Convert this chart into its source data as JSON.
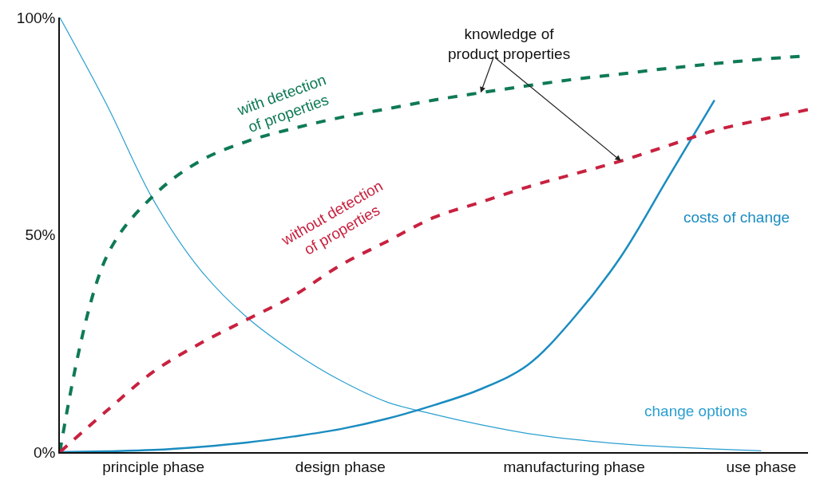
{
  "chart_data": {
    "type": "line",
    "ylim": [
      0,
      100
    ],
    "categories": [
      null,
      null,
      "principle phase",
      null,
      null,
      null,
      "design phase",
      null,
      null,
      null,
      null,
      "manufacturing phase",
      null,
      null,
      null,
      "use phase",
      null
    ],
    "yticks": [
      {
        "value": 0,
        "label": "0%"
      },
      {
        "value": 50,
        "label": "50%"
      },
      {
        "value": 100,
        "label": "100%"
      }
    ],
    "grid": false,
    "legend": false,
    "marker": "none",
    "series": [
      {
        "name": "change options",
        "color": "#2a9fd0",
        "line_style": "solid",
        "values": [
          100,
          80,
          58,
          42,
          31,
          23,
          16.5,
          11.5,
          8.7,
          6.3,
          4.3,
          2.9,
          1.9,
          1.2,
          0.7,
          0.3,
          null
        ]
      },
      {
        "name": "costs of change",
        "color": "#1a8cc0",
        "line_style": "solid",
        "values": [
          0,
          0.2,
          0.5,
          1.2,
          2.2,
          3.6,
          5.3,
          7.7,
          10.8,
          14.5,
          20,
          31,
          45,
          63,
          81,
          null,
          null
        ]
      },
      {
        "name": "with detection\nof properties",
        "color": "#0e7a55",
        "line_style": "dashed",
        "values": [
          0,
          45,
          59,
          67,
          71.5,
          74.5,
          77,
          79,
          81,
          82.7,
          84.3,
          85.8,
          87,
          88.3,
          89.4,
          90.4,
          91.2
        ]
      },
      {
        "name": "without detection\nof properties",
        "color": "#c8213f",
        "line_style": "dashed",
        "values": [
          0,
          9.5,
          18.5,
          25,
          30.5,
          36,
          43,
          48.5,
          54,
          57.5,
          61,
          64,
          67,
          70.5,
          74,
          76.5,
          78.8
        ]
      }
    ],
    "annotations": [
      {
        "text": "knowledge of\nproduct properties",
        "y": 82.7
      }
    ]
  }
}
